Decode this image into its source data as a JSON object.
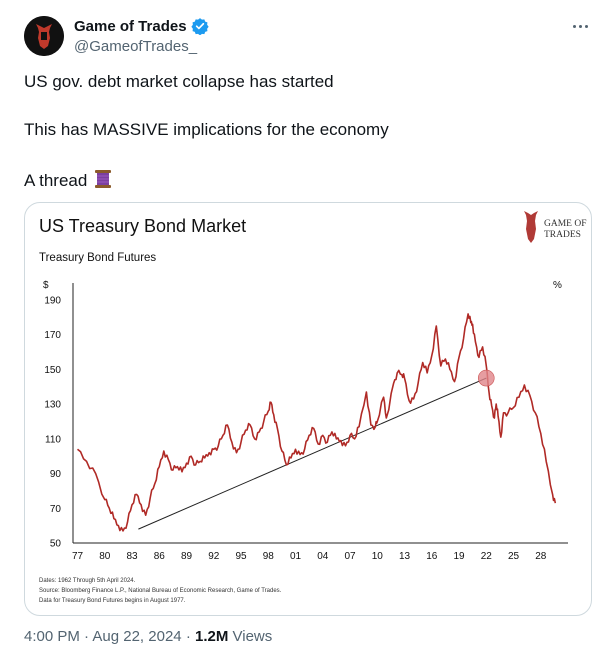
{
  "author": {
    "name": "Game of Trades",
    "handle": "@GameofTrades_",
    "verified": true
  },
  "tweet": {
    "line1": "US gov. debt market collapse has started",
    "line2": "This has MASSIVE implications for the economy",
    "line3": "A thread",
    "emoji_icon": "spool-of-thread-icon"
  },
  "meta": {
    "time": "4:00 PM",
    "sep": "·",
    "date": "Aug 22, 2024",
    "views_count": "1.2M",
    "views_label": "Views"
  },
  "colors": {
    "line": "#b02a26",
    "trend": "#222222",
    "highlight": "#e0858a",
    "verified": "#1d9bf0"
  },
  "chart_data": {
    "type": "line",
    "title": "US Treasury Bond Market",
    "subtitle": "Treasury Bond Futures",
    "logo_text": [
      "GAME OF",
      "TRADES"
    ],
    "y_left_unit": "$",
    "y_right_unit": "%",
    "ylim": [
      50,
      190
    ],
    "yticks": [
      190,
      170,
      150,
      130,
      110,
      90,
      70,
      50
    ],
    "xticks": [
      "77",
      "80",
      "83",
      "86",
      "89",
      "92",
      "95",
      "98",
      "01",
      "04",
      "07",
      "10",
      "13",
      "16",
      "19",
      "22",
      "25",
      "28"
    ],
    "series": [
      {
        "values": [
          [
            1977.0,
            104
          ],
          [
            1978.0,
            97
          ],
          [
            1979.0,
            90
          ],
          [
            1980.0,
            75
          ],
          [
            1980.5,
            70
          ],
          [
            1981.0,
            64
          ],
          [
            1981.5,
            60
          ],
          [
            1982.0,
            57
          ],
          [
            1982.5,
            62
          ],
          [
            1983.0,
            72
          ],
          [
            1983.5,
            78
          ],
          [
            1984.0,
            72
          ],
          [
            1984.5,
            66
          ],
          [
            1985.0,
            76
          ],
          [
            1985.5,
            84
          ],
          [
            1986.0,
            94
          ],
          [
            1986.5,
            103
          ],
          [
            1987.0,
            98
          ],
          [
            1987.5,
            92
          ],
          [
            1988.0,
            94
          ],
          [
            1988.5,
            91
          ],
          [
            1989.0,
            96
          ],
          [
            1989.5,
            100
          ],
          [
            1990.0,
            95
          ],
          [
            1990.5,
            97
          ],
          [
            1991.0,
            99
          ],
          [
            1991.5,
            102
          ],
          [
            1992.0,
            104
          ],
          [
            1992.5,
            106
          ],
          [
            1993.0,
            112
          ],
          [
            1993.5,
            118
          ],
          [
            1994.0,
            108
          ],
          [
            1994.5,
            102
          ],
          [
            1995.0,
            108
          ],
          [
            1995.5,
            115
          ],
          [
            1996.0,
            118
          ],
          [
            1996.5,
            110
          ],
          [
            1997.0,
            114
          ],
          [
            1997.5,
            120
          ],
          [
            1998.0,
            126
          ],
          [
            1998.3,
            131
          ],
          [
            1998.6,
            124
          ],
          [
            1999.0,
            116
          ],
          [
            1999.5,
            103
          ],
          [
            2000.0,
            95
          ],
          [
            2000.5,
            99
          ],
          [
            2001.0,
            104
          ],
          [
            2001.5,
            101
          ],
          [
            2002.0,
            104
          ],
          [
            2002.5,
            112
          ],
          [
            2003.0,
            116
          ],
          [
            2003.5,
            107
          ],
          [
            2004.0,
            112
          ],
          [
            2004.5,
            108
          ],
          [
            2005.0,
            114
          ],
          [
            2005.5,
            110
          ],
          [
            2006.0,
            109
          ],
          [
            2006.5,
            106
          ],
          [
            2007.0,
            112
          ],
          [
            2007.5,
            110
          ],
          [
            2008.0,
            117
          ],
          [
            2008.8,
            137
          ],
          [
            2009.3,
            118
          ],
          [
            2009.8,
            117
          ],
          [
            2010.0,
            120
          ],
          [
            2010.7,
            134
          ],
          [
            2011.0,
            122
          ],
          [
            2011.8,
            142
          ],
          [
            2012.2,
            148
          ],
          [
            2012.7,
            147
          ],
          [
            2013.0,
            145
          ],
          [
            2013.5,
            132
          ],
          [
            2014.0,
            133
          ],
          [
            2014.5,
            142
          ],
          [
            2015.0,
            154
          ],
          [
            2015.5,
            148
          ],
          [
            2016.0,
            158
          ],
          [
            2016.5,
            175
          ],
          [
            2017.0,
            152
          ],
          [
            2017.5,
            156
          ],
          [
            2018.0,
            150
          ],
          [
            2018.5,
            143
          ],
          [
            2019.0,
            157
          ],
          [
            2019.5,
            168
          ],
          [
            2020.0,
            182
          ],
          [
            2020.3,
            177
          ],
          [
            2020.5,
            176
          ],
          [
            2020.8,
            166
          ],
          [
            2021.2,
            157
          ],
          [
            2021.6,
            163
          ],
          [
            2022.0,
            152
          ],
          [
            2022.3,
            137
          ],
          [
            2022.6,
            129
          ],
          [
            2022.9,
            122
          ],
          [
            2023.1,
            130
          ],
          [
            2023.3,
            123
          ],
          [
            2023.6,
            111
          ],
          [
            2023.9,
            125
          ],
          [
            2024.4,
            125
          ],
          [
            2025.0,
            128
          ],
          [
            2025.6,
            134
          ],
          [
            2026.2,
            141
          ],
          [
            2026.8,
            135
          ],
          [
            2027.4,
            125
          ],
          [
            2028.0,
            113
          ],
          [
            2028.6,
            97
          ],
          [
            2029.3,
            78
          ],
          [
            2029.6,
            73
          ]
        ]
      }
    ],
    "trendline": [
      [
        1983.7,
        58
      ],
      [
        2022.0,
        145
      ]
    ],
    "highlight_point": [
      2022.0,
      145
    ],
    "footnotes": [
      "Dates: 1962 Through 5th April 2024.",
      "Source: Bloomberg Finance L.P., National Bureau of Economic Research, Game of Trades.",
      "Data for Treasury Bond Futures begins in August 1977."
    ],
    "grid": false
  }
}
